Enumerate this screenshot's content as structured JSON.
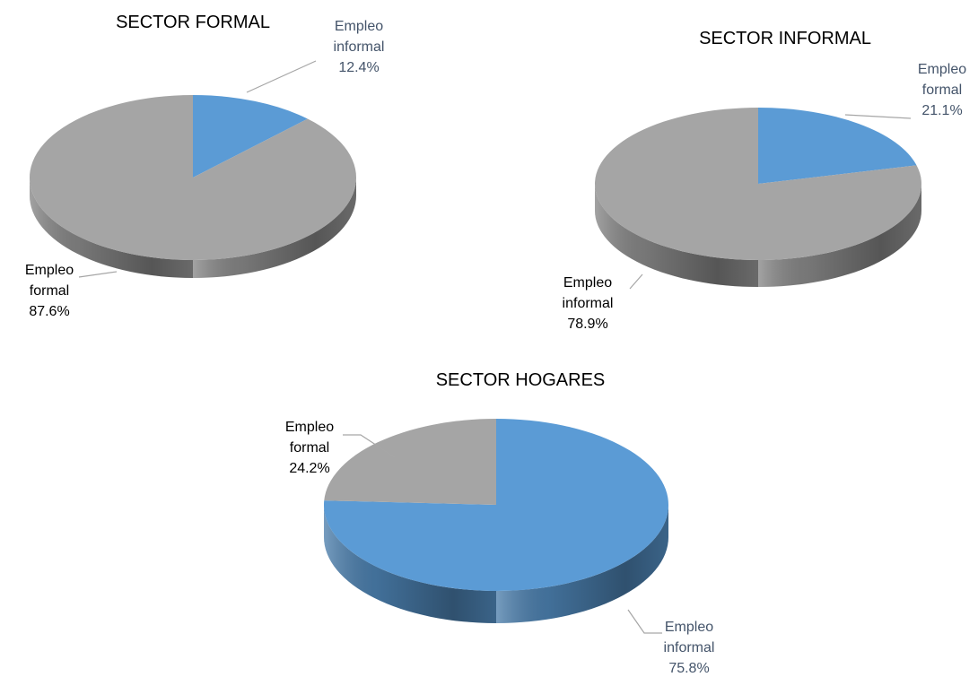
{
  "chart_data": [
    {
      "type": "pie",
      "title": "SECTOR FORMAL",
      "categories": [
        "Empleo informal",
        "Empleo formal"
      ],
      "values": [
        12.4,
        87.6
      ],
      "value_labels": [
        "12.4%",
        "87.6%"
      ],
      "colors": [
        "#5b9bd5",
        "#a5a5a5"
      ],
      "label_colors": [
        "#44546a",
        "#000000"
      ]
    },
    {
      "type": "pie",
      "title": "SECTOR INFORMAL",
      "categories": [
        "Empleo formal",
        "Empleo informal"
      ],
      "values": [
        21.1,
        78.9
      ],
      "value_labels": [
        "21.1%",
        "78.9%"
      ],
      "colors": [
        "#5b9bd5",
        "#a5a5a5"
      ],
      "label_colors": [
        "#44546a",
        "#000000"
      ]
    },
    {
      "type": "pie",
      "title": "SECTOR HOGARES",
      "categories": [
        "Empleo informal",
        "Empleo formal"
      ],
      "values": [
        75.8,
        24.2
      ],
      "value_labels": [
        "75.8%",
        "24.2%"
      ],
      "colors": [
        "#5b9bd5",
        "#a5a5a5"
      ],
      "label_colors": [
        "#44546a",
        "#000000"
      ]
    }
  ]
}
